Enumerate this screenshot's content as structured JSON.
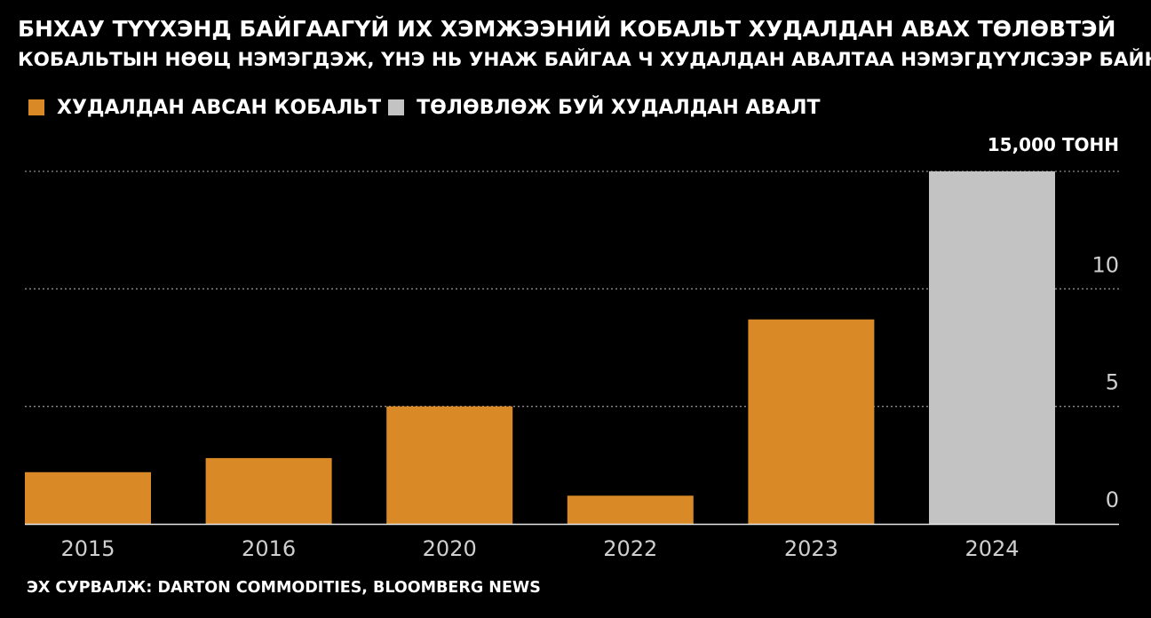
{
  "header": {
    "title": "БНХАУ ТҮҮХЭНД БАЙГААГҮЙ ИХ ХЭМЖЭЭНИЙ КОБАЛЬТ ХУДАЛДАН АВАХ ТӨЛӨВТЭЙ",
    "subtitle": "КОБАЛЬТЫН НӨӨЦ НЭМЭГДЭЖ, ҮНЭ НЬ УНАЖ БАЙГАА Ч ХУДАЛДАН АВАЛТАА НЭМЭГДҮҮЛСЭЭР БАЙНА"
  },
  "legend": {
    "purchased": "ХУДАЛДАН АВСАН КОБАЛЬТ",
    "planned": "ТӨЛӨВЛӨЖ БУЙ ХУДАЛДАН АВАЛТ"
  },
  "colors": {
    "purchased": "#d98a26",
    "planned": "#c3c3c3",
    "background": "#000000",
    "text": "#ffffff",
    "axis_text": "#cfcfcf",
    "grid": "#8a8a8a"
  },
  "source": "ЭХ СУРВАЛЖ: DARTON COMMODITIES, BLOOMBERG NEWS",
  "chart_data": {
    "type": "bar",
    "categories": [
      "2015",
      "2016",
      "2020",
      "2022",
      "2023",
      "2024"
    ],
    "series": [
      {
        "name": "ХУДАЛДАН АВСАН КОБАЛЬТ",
        "values": [
          2.2,
          2.8,
          5.0,
          1.2,
          8.7,
          null
        ]
      },
      {
        "name": "ТӨЛӨВЛӨЖ БУЙ ХУДАЛДАН АВАЛТ",
        "values": [
          null,
          null,
          null,
          null,
          null,
          15.0
        ]
      }
    ],
    "y_ticks": [
      {
        "value": 15,
        "label": "15,000 ТОНН"
      },
      {
        "value": 10,
        "label": "10"
      },
      {
        "value": 5,
        "label": "5"
      },
      {
        "value": 0,
        "label": "0"
      }
    ],
    "ylim": [
      0,
      15
    ],
    "ylabel": "",
    "xlabel": "",
    "grid": true,
    "legend_position": "top-left",
    "y_axis_position": "right"
  }
}
